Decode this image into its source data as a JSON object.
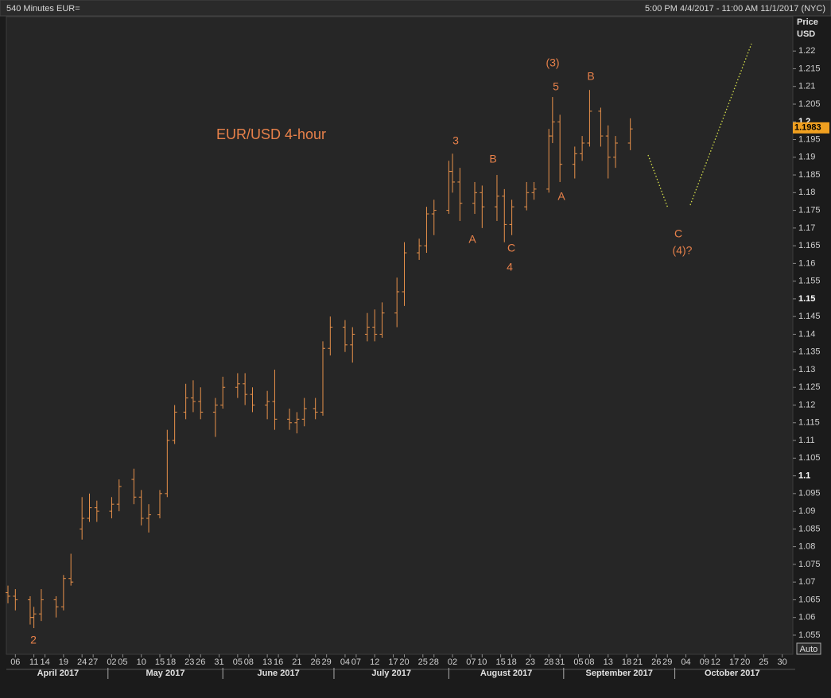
{
  "chart_data": {
    "type": "ohlc",
    "title": "540 Minutes EUR=",
    "subtitle": "5:00 PM 4/4/2017 - 11:00 AM 11/1/2017 (NYC)",
    "y_label": "Price",
    "y_unit": "USD",
    "auto_button": "Auto",
    "color": "#e8914a",
    "annotation_color": "#e8814a",
    "projection_color": "#d6e04a",
    "last_price": 1.1983,
    "annotations": [
      "EUR/USD 4-hour",
      "2",
      "3",
      "B",
      "A",
      "C",
      "4",
      "(3)",
      "5",
      "A",
      "B",
      "C",
      "(4)?"
    ],
    "xlim": [
      "2017-04-04",
      "2017-11-01"
    ],
    "ylim": [
      1.0496,
      1.2297
    ],
    "yticks": [
      1.055,
      1.06,
      1.065,
      1.07,
      1.075,
      1.08,
      1.085,
      1.09,
      1.095,
      1.1,
      1.105,
      1.11,
      1.115,
      1.12,
      1.125,
      1.13,
      1.135,
      1.14,
      1.145,
      1.15,
      1.155,
      1.16,
      1.165,
      1.17,
      1.175,
      1.18,
      1.185,
      1.19,
      1.195,
      1.2,
      1.205,
      1.21,
      1.215,
      1.22
    ],
    "xticks": [
      {
        "value": "2017-04-06",
        "label": "06"
      },
      {
        "value": "2017-04-11",
        "label": "11"
      },
      {
        "value": "2017-04-14",
        "label": "14"
      },
      {
        "value": "2017-04-19",
        "label": "19"
      },
      {
        "value": "2017-04-24",
        "label": "24"
      },
      {
        "value": "2017-04-27",
        "label": "27"
      },
      {
        "value": "2017-05-02",
        "label": "02"
      },
      {
        "value": "2017-05-05",
        "label": "05"
      },
      {
        "value": "2017-05-10",
        "label": "10"
      },
      {
        "value": "2017-05-15",
        "label": "15"
      },
      {
        "value": "2017-05-18",
        "label": "18"
      },
      {
        "value": "2017-05-23",
        "label": "23"
      },
      {
        "value": "2017-05-26",
        "label": "26"
      },
      {
        "value": "2017-05-31",
        "label": "31"
      },
      {
        "value": "2017-06-05",
        "label": "05"
      },
      {
        "value": "2017-06-08",
        "label": "08"
      },
      {
        "value": "2017-06-13",
        "label": "13"
      },
      {
        "value": "2017-06-16",
        "label": "16"
      },
      {
        "value": "2017-06-21",
        "label": "21"
      },
      {
        "value": "2017-06-26",
        "label": "26"
      },
      {
        "value": "2017-06-29",
        "label": "29"
      },
      {
        "value": "2017-07-04",
        "label": "04"
      },
      {
        "value": "2017-07-07",
        "label": "07"
      },
      {
        "value": "2017-07-12",
        "label": "12"
      },
      {
        "value": "2017-07-17",
        "label": "17"
      },
      {
        "value": "2017-07-20",
        "label": "20"
      },
      {
        "value": "2017-07-25",
        "label": "25"
      },
      {
        "value": "2017-07-28",
        "label": "28"
      },
      {
        "value": "2017-08-02",
        "label": "02"
      },
      {
        "value": "2017-08-07",
        "label": "07"
      },
      {
        "value": "2017-08-10",
        "label": "10"
      },
      {
        "value": "2017-08-15",
        "label": "15"
      },
      {
        "value": "2017-08-18",
        "label": "18"
      },
      {
        "value": "2017-08-23",
        "label": "23"
      },
      {
        "value": "2017-08-28",
        "label": "28"
      },
      {
        "value": "2017-08-31",
        "label": "31"
      },
      {
        "value": "2017-09-05",
        "label": "05"
      },
      {
        "value": "2017-09-08",
        "label": "08"
      },
      {
        "value": "2017-09-13",
        "label": "13"
      },
      {
        "value": "2017-09-18",
        "label": "18"
      },
      {
        "value": "2017-09-21",
        "label": "21"
      },
      {
        "value": "2017-09-26",
        "label": "26"
      },
      {
        "value": "2017-09-29",
        "label": "29"
      },
      {
        "value": "2017-10-04",
        "label": "04"
      },
      {
        "value": "2017-10-09",
        "label": "09"
      },
      {
        "value": "2017-10-12",
        "label": "12"
      },
      {
        "value": "2017-10-17",
        "label": "17"
      },
      {
        "value": "2017-10-20",
        "label": "20"
      },
      {
        "value": "2017-10-25",
        "label": "25"
      },
      {
        "value": "2017-10-30",
        "label": "30"
      }
    ],
    "months": [
      {
        "value": "2017-04-01",
        "label": "April 2017"
      },
      {
        "value": "2017-05-01",
        "label": "May 2017"
      },
      {
        "value": "2017-06-01",
        "label": "June 2017"
      },
      {
        "value": "2017-07-01",
        "label": "July 2017"
      },
      {
        "value": "2017-08-01",
        "label": "August 2017"
      },
      {
        "value": "2017-09-01",
        "label": "September 2017"
      },
      {
        "value": "2017-10-01",
        "label": "October 2017"
      }
    ],
    "x": [
      "2017-04-04",
      "2017-04-06",
      "2017-04-10",
      "2017-04-11",
      "2017-04-13",
      "2017-04-17",
      "2017-04-19",
      "2017-04-21",
      "2017-04-24",
      "2017-04-26",
      "2017-04-28",
      "2017-05-02",
      "2017-05-04",
      "2017-05-08",
      "2017-05-10",
      "2017-05-12",
      "2017-05-15",
      "2017-05-17",
      "2017-05-19",
      "2017-05-22",
      "2017-05-24",
      "2017-05-26",
      "2017-05-30",
      "2017-06-01",
      "2017-06-05",
      "2017-06-07",
      "2017-06-09",
      "2017-06-13",
      "2017-06-15",
      "2017-06-19",
      "2017-06-21",
      "2017-06-23",
      "2017-06-26",
      "2017-06-28",
      "2017-06-30",
      "2017-07-04",
      "2017-07-06",
      "2017-07-10",
      "2017-07-12",
      "2017-07-14",
      "2017-07-18",
      "2017-07-20",
      "2017-07-24",
      "2017-07-26",
      "2017-07-28",
      "2017-08-01",
      "2017-08-02",
      "2017-08-04",
      "2017-08-08",
      "2017-08-10",
      "2017-08-14",
      "2017-08-16",
      "2017-08-18",
      "2017-08-22",
      "2017-08-24",
      "2017-08-28",
      "2017-08-29",
      "2017-08-31",
      "2017-09-04",
      "2017-09-06",
      "2017-09-08",
      "2017-09-11",
      "2017-09-13",
      "2017-09-15",
      "2017-09-19"
    ],
    "open": [
      1.067,
      1.066,
      1.065,
      1.06,
      1.061,
      1.065,
      1.063,
      1.071,
      1.085,
      1.088,
      1.091,
      1.09,
      1.092,
      1.099,
      1.094,
      1.088,
      1.089,
      1.095,
      1.11,
      1.118,
      1.122,
      1.121,
      1.118,
      1.12,
      1.125,
      1.126,
      1.123,
      1.12,
      1.121,
      1.116,
      1.115,
      1.116,
      1.119,
      1.118,
      1.136,
      1.142,
      1.137,
      1.14,
      1.142,
      1.14,
      1.146,
      1.152,
      1.163,
      1.165,
      1.174,
      1.175,
      1.186,
      1.183,
      1.177,
      1.18,
      1.176,
      1.179,
      1.171,
      1.176,
      1.18,
      1.181,
      1.196,
      1.2,
      1.188,
      1.191,
      1.194,
      1.203,
      1.196,
      1.19,
      1.194
    ],
    "high": [
      1.069,
      1.068,
      1.066,
      1.063,
      1.068,
      1.066,
      1.072,
      1.078,
      1.094,
      1.095,
      1.093,
      1.094,
      1.099,
      1.102,
      1.096,
      1.092,
      1.096,
      1.113,
      1.12,
      1.126,
      1.127,
      1.125,
      1.122,
      1.128,
      1.129,
      1.129,
      1.125,
      1.124,
      1.13,
      1.119,
      1.118,
      1.122,
      1.122,
      1.138,
      1.145,
      1.144,
      1.142,
      1.146,
      1.147,
      1.149,
      1.156,
      1.166,
      1.167,
      1.176,
      1.178,
      1.189,
      1.191,
      1.187,
      1.183,
      1.182,
      1.185,
      1.181,
      1.178,
      1.183,
      1.183,
      1.198,
      1.207,
      1.202,
      1.193,
      1.196,
      1.209,
      1.204,
      1.199,
      1.196,
      1.201
    ],
    "low": [
      1.064,
      1.062,
      1.058,
      1.057,
      1.059,
      1.06,
      1.062,
      1.069,
      1.082,
      1.087,
      1.087,
      1.088,
      1.09,
      1.092,
      1.086,
      1.084,
      1.088,
      1.094,
      1.109,
      1.116,
      1.118,
      1.116,
      1.111,
      1.119,
      1.122,
      1.12,
      1.118,
      1.116,
      1.113,
      1.113,
      1.112,
      1.114,
      1.116,
      1.117,
      1.134,
      1.135,
      1.132,
      1.138,
      1.138,
      1.139,
      1.142,
      1.148,
      1.161,
      1.163,
      1.168,
      1.174,
      1.18,
      1.172,
      1.174,
      1.17,
      1.172,
      1.166,
      1.168,
      1.175,
      1.178,
      1.18,
      1.194,
      1.183,
      1.184,
      1.189,
      1.193,
      1.193,
      1.184,
      1.187,
      1.192
    ],
    "close": [
      1.066,
      1.065,
      1.06,
      1.061,
      1.065,
      1.063,
      1.071,
      1.07,
      1.088,
      1.091,
      1.09,
      1.092,
      1.097,
      1.094,
      1.088,
      1.089,
      1.095,
      1.11,
      1.118,
      1.122,
      1.121,
      1.118,
      1.12,
      1.125,
      1.126,
      1.123,
      1.12,
      1.121,
      1.116,
      1.115,
      1.116,
      1.119,
      1.118,
      1.136,
      1.142,
      1.137,
      1.14,
      1.142,
      1.14,
      1.146,
      1.152,
      1.163,
      1.165,
      1.174,
      1.175,
      1.186,
      1.183,
      1.177,
      1.18,
      1.176,
      1.179,
      1.171,
      1.176,
      1.18,
      1.181,
      1.196,
      1.2,
      1.188,
      1.191,
      1.194,
      1.203,
      1.196,
      1.19,
      1.194,
      1.198
    ]
  }
}
